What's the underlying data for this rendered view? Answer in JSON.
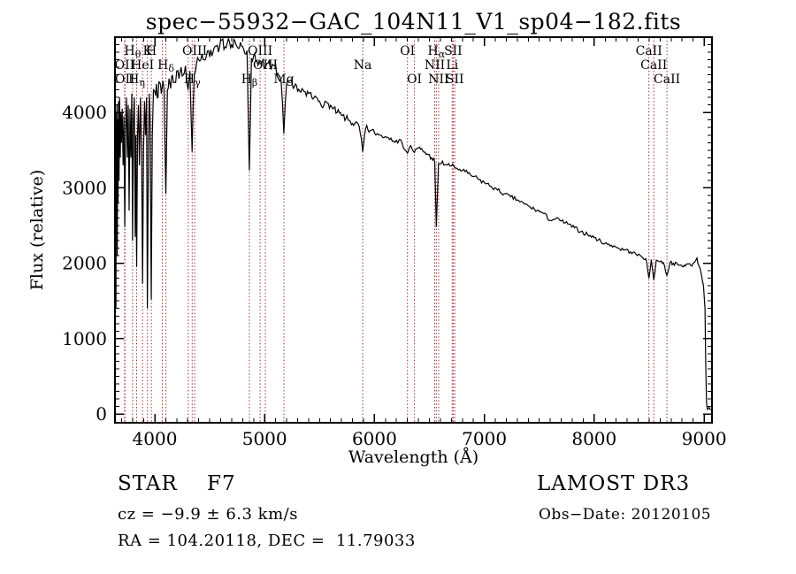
{
  "chart_data": {
    "type": "line",
    "title": "spec−55932−GAC_104N11_V1_sp04−182.fits",
    "xlabel": "Wavelength (Å)",
    "ylabel": "Flux (relative)",
    "xlim": [
      3638,
      9072
    ],
    "ylim": [
      -117,
      5000
    ],
    "xticks": [
      4000,
      5000,
      6000,
      7000,
      8000,
      9000
    ],
    "yticks": [
      0,
      1000,
      2000,
      3000,
      4000
    ],
    "x_minor_step": 100,
    "y_minor_step": 100,
    "grid": false,
    "legend": "none",
    "line_color": "#000000",
    "marker_line_color": "#a03030",
    "spectral_lines": [
      {
        "wavelength": 3726.0,
        "main": "OII",
        "sub": "",
        "row": 2
      },
      {
        "wavelength": 3728.8,
        "main": "OII",
        "sub": "",
        "row": 3
      },
      {
        "wavelength": 3798.0,
        "main": "H",
        "sub": "θ",
        "row": 1
      },
      {
        "wavelength": 3835.4,
        "main": "H",
        "sub": "η",
        "row": 3
      },
      {
        "wavelength": 3889.0,
        "main": "HeI",
        "sub": "",
        "row": 2
      },
      {
        "wavelength": 3933.7,
        "main": "K",
        "sub": "",
        "row": 1
      },
      {
        "wavelength": 3968.5,
        "main": "H",
        "sub": "",
        "row": 1
      },
      {
        "wavelength": 4068.6,
        "main": "",
        "sub": "",
        "row": 0
      },
      {
        "wavelength": 4101.7,
        "main": "H",
        "sub": "δ",
        "row": 2
      },
      {
        "wavelength": 4304.4,
        "main": "",
        "sub": "",
        "row": 0
      },
      {
        "wavelength": 4340.5,
        "main": "H",
        "sub": "γ",
        "row": 3
      },
      {
        "wavelength": 4363.2,
        "main": "OIII",
        "sub": "",
        "row": 1
      },
      {
        "wavelength": 4861.3,
        "main": "H",
        "sub": "β",
        "row": 3
      },
      {
        "wavelength": 4959.0,
        "main": "OIII",
        "sub": "",
        "row": 1
      },
      {
        "wavelength": 5006.8,
        "main": "OIII",
        "sub": "",
        "row": 2
      },
      {
        "wavelength": 5175.3,
        "main": "Mg",
        "sub": "",
        "row": 3
      },
      {
        "wavelength": 5893.0,
        "main": "Na",
        "sub": "",
        "row": 2
      },
      {
        "wavelength": 6300.2,
        "main": "OI",
        "sub": "",
        "row": 1
      },
      {
        "wavelength": 6363.7,
        "main": "OI",
        "sub": "",
        "row": 3
      },
      {
        "wavelength": 6548.1,
        "main": "NII",
        "sub": "",
        "row": 2
      },
      {
        "wavelength": 6562.8,
        "main": "H",
        "sub": "α",
        "row": 1
      },
      {
        "wavelength": 6583.4,
        "main": "NII",
        "sub": "",
        "row": 3
      },
      {
        "wavelength": 6707.9,
        "main": "Li",
        "sub": "",
        "row": 2
      },
      {
        "wavelength": 6716.4,
        "main": "SII",
        "sub": "",
        "row": 1
      },
      {
        "wavelength": 6730.8,
        "main": "SII",
        "sub": "",
        "row": 3
      },
      {
        "wavelength": 8498.0,
        "main": "CaII",
        "sub": "",
        "row": 1
      },
      {
        "wavelength": 8542.1,
        "main": "CaII",
        "sub": "",
        "row": 2
      },
      {
        "wavelength": 8662.1,
        "main": "CaII",
        "sub": "",
        "row": 3
      }
    ],
    "spectrum_anchors": [
      [
        3640,
        150
      ],
      [
        3641,
        4150
      ],
      [
        3643,
        1900
      ],
      [
        3645,
        4000
      ],
      [
        3647,
        1400
      ],
      [
        3650,
        3850
      ],
      [
        3653,
        2600
      ],
      [
        3656,
        4100
      ],
      [
        3659,
        2100
      ],
      [
        3662,
        3900
      ],
      [
        3666,
        2800
      ],
      [
        3670,
        4150
      ],
      [
        3675,
        3100
      ],
      [
        3680,
        4200
      ],
      [
        3686,
        3400
      ],
      [
        3691,
        4000
      ],
      [
        3697,
        3600
      ],
      [
        3704,
        4050
      ],
      [
        3712,
        3300
      ],
      [
        3719,
        3950
      ],
      [
        3727,
        2480
      ],
      [
        3735,
        3750
      ],
      [
        3743,
        4200
      ],
      [
        3751,
        3400
      ],
      [
        3759,
        4100
      ],
      [
        3767,
        2700
      ],
      [
        3775,
        4050
      ],
      [
        3783,
        3400
      ],
      [
        3791,
        4250
      ],
      [
        3798,
        2300
      ],
      [
        3806,
        3900
      ],
      [
        3814,
        4200
      ],
      [
        3822,
        2350
      ],
      [
        3828,
        3700
      ],
      [
        3835,
        1950
      ],
      [
        3843,
        3700
      ],
      [
        3851,
        4100
      ],
      [
        3860,
        3300
      ],
      [
        3870,
        4200
      ],
      [
        3880,
        3500
      ],
      [
        3889,
        1730
      ],
      [
        3898,
        3500
      ],
      [
        3907,
        4150
      ],
      [
        3916,
        3700
      ],
      [
        3925,
        4200
      ],
      [
        3933,
        1400
      ],
      [
        3943,
        3600
      ],
      [
        3950,
        4250
      ],
      [
        3958,
        3900
      ],
      [
        3968,
        1520
      ],
      [
        3978,
        3700
      ],
      [
        3988,
        4300
      ],
      [
        4000,
        4280
      ],
      [
        4015,
        4380
      ],
      [
        4030,
        4200
      ],
      [
        4045,
        4400
      ],
      [
        4060,
        4250
      ],
      [
        4075,
        4420
      ],
      [
        4085,
        4300
      ],
      [
        4101,
        2920
      ],
      [
        4115,
        4300
      ],
      [
        4130,
        4450
      ],
      [
        4145,
        4320
      ],
      [
        4160,
        4500
      ],
      [
        4180,
        4400
      ],
      [
        4200,
        4550
      ],
      [
        4220,
        4450
      ],
      [
        4240,
        4600
      ],
      [
        4260,
        4500
      ],
      [
        4280,
        4620
      ],
      [
        4304,
        4300
      ],
      [
        4320,
        4550
      ],
      [
        4340,
        3480
      ],
      [
        4360,
        4500
      ],
      [
        4380,
        4650
      ],
      [
        4400,
        4700
      ],
      [
        4430,
        4780
      ],
      [
        4460,
        4700
      ],
      [
        4490,
        4820
      ],
      [
        4520,
        4750
      ],
      [
        4550,
        4880
      ],
      [
        4580,
        4800
      ],
      [
        4610,
        4960
      ],
      [
        4640,
        4870
      ],
      [
        4670,
        4980
      ],
      [
        4700,
        4900
      ],
      [
        4730,
        4950
      ],
      [
        4760,
        4850
      ],
      [
        4790,
        4880
      ],
      [
        4820,
        4780
      ],
      [
        4840,
        4820
      ],
      [
        4861,
        3230
      ],
      [
        4880,
        4720
      ],
      [
        4900,
        4750
      ],
      [
        4930,
        4680
      ],
      [
        4959,
        4650
      ],
      [
        4985,
        4700
      ],
      [
        5007,
        4600
      ],
      [
        5030,
        4650
      ],
      [
        5060,
        4580
      ],
      [
        5090,
        4620
      ],
      [
        5120,
        4520
      ],
      [
        5150,
        4420
      ],
      [
        5175,
        3720
      ],
      [
        5200,
        4380
      ],
      [
        5230,
        4420
      ],
      [
        5260,
        4320
      ],
      [
        5290,
        4360
      ],
      [
        5320,
        4280
      ],
      [
        5350,
        4300
      ],
      [
        5380,
        4220
      ],
      [
        5410,
        4260
      ],
      [
        5440,
        4180
      ],
      [
        5470,
        4200
      ],
      [
        5500,
        4150
      ],
      [
        5540,
        4100
      ],
      [
        5580,
        4120
      ],
      [
        5620,
        4050
      ],
      [
        5660,
        4000
      ],
      [
        5700,
        3960
      ],
      [
        5740,
        3920
      ],
      [
        5780,
        3880
      ],
      [
        5820,
        3850
      ],
      [
        5860,
        3820
      ],
      [
        5893,
        3480
      ],
      [
        5920,
        3790
      ],
      [
        5960,
        3760
      ],
      [
        6000,
        3730
      ],
      [
        6050,
        3700
      ],
      [
        6100,
        3680
      ],
      [
        6150,
        3660
      ],
      [
        6200,
        3630
      ],
      [
        6250,
        3600
      ],
      [
        6300,
        3460
      ],
      [
        6330,
        3560
      ],
      [
        6363,
        3470
      ],
      [
        6400,
        3530
      ],
      [
        6440,
        3490
      ],
      [
        6480,
        3450
      ],
      [
        6520,
        3400
      ],
      [
        6548,
        3350
      ],
      [
        6563,
        2480
      ],
      [
        6583,
        3320
      ],
      [
        6610,
        3330
      ],
      [
        6650,
        3310
      ],
      [
        6700,
        3290
      ],
      [
        6750,
        3260
      ],
      [
        6800,
        3230
      ],
      [
        6850,
        3190
      ],
      [
        6900,
        3150
      ],
      [
        6950,
        3110
      ],
      [
        7000,
        3070
      ],
      [
        7060,
        3020
      ],
      [
        7120,
        2970
      ],
      [
        7180,
        2920
      ],
      [
        7240,
        2880
      ],
      [
        7300,
        2840
      ],
      [
        7360,
        2790
      ],
      [
        7420,
        2740
      ],
      [
        7480,
        2700
      ],
      [
        7540,
        2660
      ],
      [
        7600,
        2570
      ],
      [
        7650,
        2590
      ],
      [
        7700,
        2560
      ],
      [
        7760,
        2520
      ],
      [
        7820,
        2470
      ],
      [
        7880,
        2420
      ],
      [
        7940,
        2380
      ],
      [
        8000,
        2340
      ],
      [
        8060,
        2290
      ],
      [
        8120,
        2250
      ],
      [
        8180,
        2230
      ],
      [
        8230,
        2190
      ],
      [
        8280,
        2180
      ],
      [
        8330,
        2150
      ],
      [
        8380,
        2120
      ],
      [
        8430,
        2090
      ],
      [
        8470,
        2060
      ],
      [
        8498,
        1800
      ],
      [
        8520,
        2050
      ],
      [
        8542,
        1780
      ],
      [
        8565,
        2040
      ],
      [
        8600,
        2020
      ],
      [
        8630,
        2010
      ],
      [
        8662,
        1840
      ],
      [
        8690,
        2010
      ],
      [
        8720,
        2000
      ],
      [
        8760,
        1980
      ],
      [
        8800,
        1960
      ],
      [
        8840,
        1990
      ],
      [
        8880,
        1970
      ],
      [
        8910,
        2010
      ],
      [
        8935,
        2070
      ],
      [
        8955,
        1960
      ],
      [
        8975,
        1850
      ],
      [
        8995,
        1700
      ],
      [
        9008,
        1400
      ],
      [
        9015,
        700
      ],
      [
        9022,
        150
      ],
      [
        9030,
        60
      ],
      [
        9045,
        90
      ],
      [
        9060,
        50
      ]
    ],
    "noise_regions": [
      [
        3640,
        4000,
        240
      ],
      [
        4000,
        4350,
        110
      ],
      [
        4350,
        5200,
        70
      ],
      [
        5200,
        6000,
        50
      ],
      [
        6000,
        7000,
        35
      ],
      [
        7000,
        8000,
        28
      ],
      [
        8000,
        8980,
        25
      ],
      [
        8980,
        9072,
        12
      ]
    ]
  },
  "footer": {
    "class_line": "STAR    F7",
    "cz_line": "cz = −9.9 ± 6.3 km/s",
    "radec_line": "RA = 104.20118, DEC =  11.79033",
    "survey": "LAMOST DR3",
    "obs_date": "Obs−Date: 20120105"
  }
}
